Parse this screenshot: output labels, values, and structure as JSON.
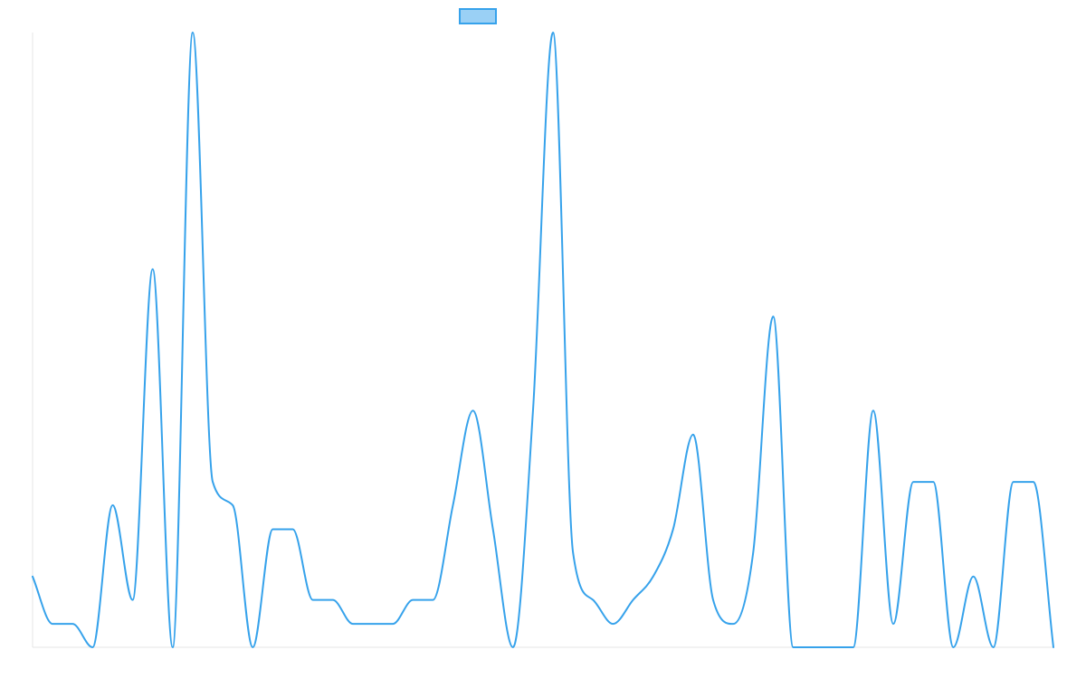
{
  "chart_data": {
    "type": "line",
    "title": "",
    "xlabel": "",
    "ylabel": "",
    "grid": false,
    "legend": {
      "placement": "top-center",
      "entries": [
        ""
      ]
    },
    "axes": {
      "x_visible": false,
      "y_visible": false
    },
    "x": [
      0,
      1,
      2,
      3,
      4,
      5,
      6,
      7,
      8,
      9,
      10,
      11,
      12,
      13,
      14,
      15,
      16,
      17,
      18,
      19,
      20,
      21,
      22,
      23,
      24,
      25,
      26,
      27,
      28,
      29,
      30,
      31,
      32,
      33,
      34,
      35,
      36,
      37,
      38,
      39,
      40,
      41,
      42,
      43,
      44,
      45,
      46,
      47,
      48,
      49,
      50,
      51
    ],
    "ylim": [
      0,
      1
    ],
    "series": [
      {
        "name": "",
        "color": "#36a2eb",
        "fill": "#9ad0f5",
        "values": [
          0.115,
          0.038,
          0.038,
          0.0,
          0.231,
          0.077,
          0.615,
          0.0,
          1.0,
          0.269,
          0.231,
          0.0,
          0.192,
          0.192,
          0.077,
          0.077,
          0.038,
          0.038,
          0.038,
          0.077,
          0.077,
          0.231,
          0.385,
          0.192,
          0.0,
          0.385,
          1.0,
          0.154,
          0.077,
          0.038,
          0.077,
          0.115,
          0.192,
          0.346,
          0.077,
          0.038,
          0.154,
          0.538,
          0.0,
          0.0,
          0.0,
          0.0,
          0.385,
          0.038,
          0.269,
          0.269,
          0.0,
          0.115,
          0.0,
          0.269,
          0.269,
          0.0
        ]
      }
    ]
  }
}
